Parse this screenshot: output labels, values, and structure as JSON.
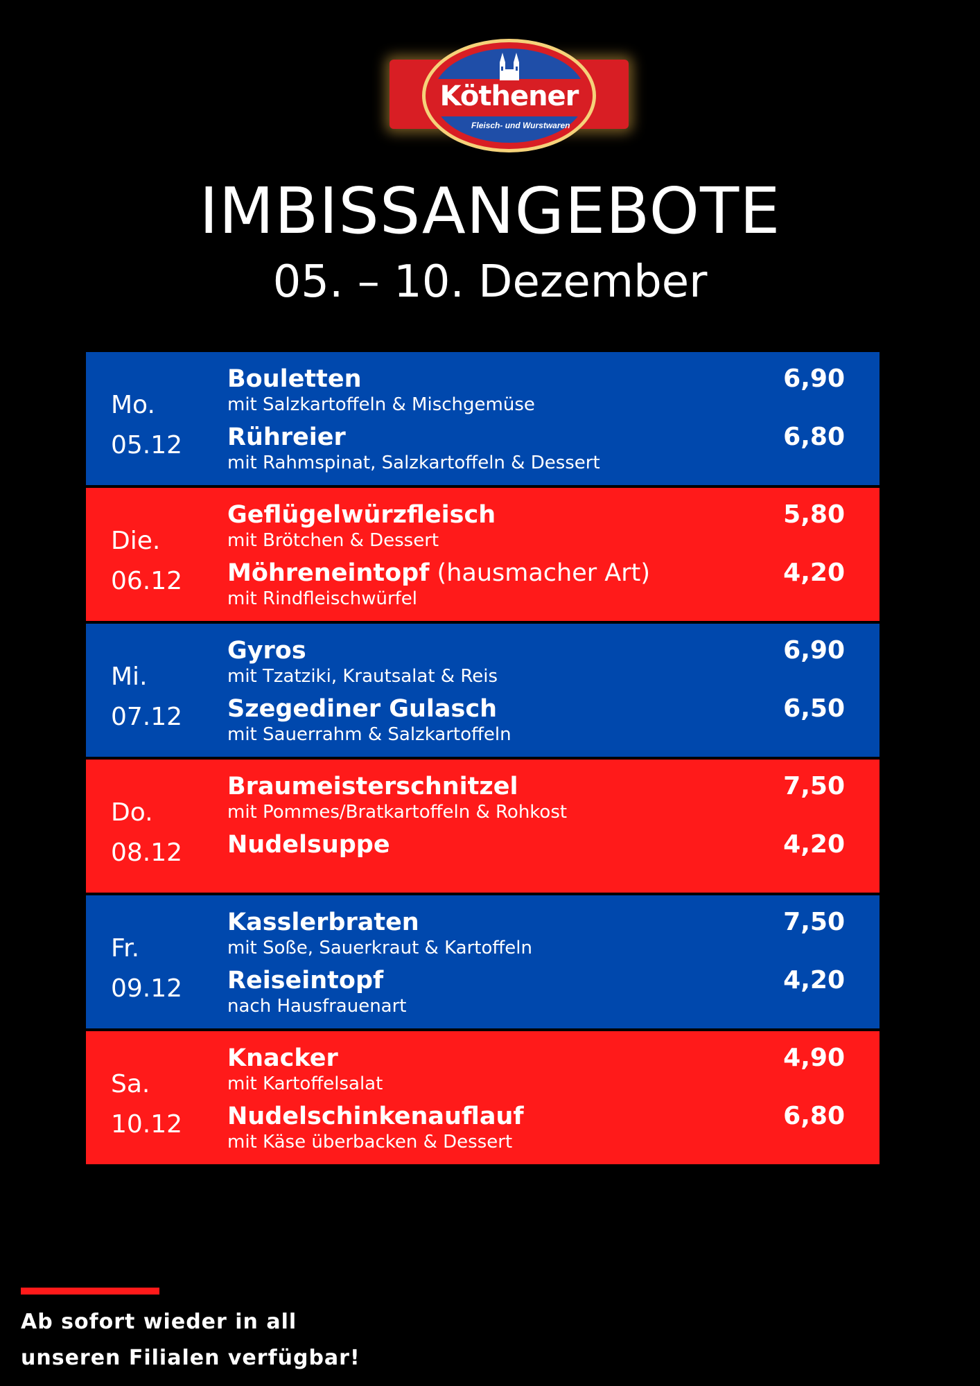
{
  "logo": {
    "brand": "Köthener",
    "tagline": "Fleisch- und Wurstwaren",
    "colors": {
      "red": "#d81e24",
      "blue": "#1f4ea8",
      "gold": "#f5d27a"
    }
  },
  "header": {
    "title": "IMBISSANGEBOTE",
    "date_range": "05. – 10. Dezember"
  },
  "row_colors": {
    "blue": "#0048ad",
    "red": "#ff1a1a"
  },
  "days": [
    {
      "color": "blue",
      "day": "Mo.",
      "date": "05.12",
      "items": [
        {
          "name": "Bouletten",
          "note": "",
          "desc": "mit Salzkartoffeln & Mischgemüse",
          "price": "6,90"
        },
        {
          "name": "Rühreier",
          "note": "",
          "desc": "mit Rahmspinat, Salzkartoffeln & Dessert",
          "price": "6,80"
        }
      ]
    },
    {
      "color": "red",
      "day": "Die.",
      "date": "06.12",
      "items": [
        {
          "name": "Geflügelwürzfleisch",
          "note": "",
          "desc": "mit Brötchen & Dessert",
          "price": "5,80"
        },
        {
          "name": "Möhreneintopf",
          "note": " (hausmacher Art)",
          "desc": "mit Rindfleischwürfel",
          "price": "4,20"
        }
      ]
    },
    {
      "color": "blue",
      "day": "Mi.",
      "date": "07.12",
      "items": [
        {
          "name": "Gyros",
          "note": "",
          "desc": "mit Tzatziki, Krautsalat & Reis",
          "price": "6,90"
        },
        {
          "name": "Szegediner Gulasch",
          "note": "",
          "desc": "mit Sauerrahm & Salzkartoffeln",
          "price": "6,50"
        }
      ]
    },
    {
      "color": "red",
      "day": "Do.",
      "date": "08.12",
      "items": [
        {
          "name": "Braumeisterschnitzel",
          "note": "",
          "desc": "mit Pommes/Bratkartoffeln & Rohkost",
          "price": "7,50"
        },
        {
          "name": "Nudelsuppe",
          "note": "",
          "desc": "",
          "price": "4,20"
        }
      ]
    },
    {
      "color": "blue",
      "day": "Fr.",
      "date": "09.12",
      "items": [
        {
          "name": "Kasslerbraten",
          "note": "",
          "desc": "mit Soße, Sauerkraut & Kartoffeln",
          "price": "7,50"
        },
        {
          "name": "Reiseintopf",
          "note": "",
          "desc": "nach Hausfrauenart",
          "price": "4,20"
        }
      ]
    },
    {
      "color": "red",
      "day": "Sa.",
      "date": "10.12",
      "items": [
        {
          "name": "Knacker",
          "note": "",
          "desc": "mit Kartoffelsalat",
          "price": "4,90"
        },
        {
          "name": "Nudelschinkenauflauf",
          "note": "",
          "desc": "mit Käse überbacken & Dessert",
          "price": "6,80"
        }
      ]
    }
  ],
  "footer": {
    "line1": "Ab sofort wieder in all",
    "line2": "unseren Filialen verfügbar!"
  }
}
